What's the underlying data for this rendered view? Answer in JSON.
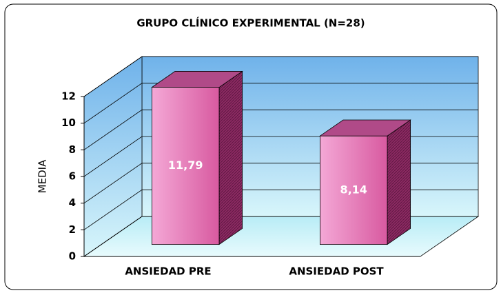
{
  "chart_data": {
    "type": "bar3d",
    "title": "GRUPO CLÍNICO EXPERIMENTAL (N=28)",
    "y_label": "MEDIA",
    "categories": [
      "ANSIEDAD PRE",
      "ANSIEDAD POST"
    ],
    "values": [
      11.79,
      8.14
    ],
    "value_labels": [
      "11,79",
      "8,14"
    ],
    "color": "#e070b0",
    "ylim": [
      0,
      12
    ],
    "yticks": [
      0,
      2,
      4,
      6,
      8,
      10,
      12
    ],
    "grid": true
  }
}
